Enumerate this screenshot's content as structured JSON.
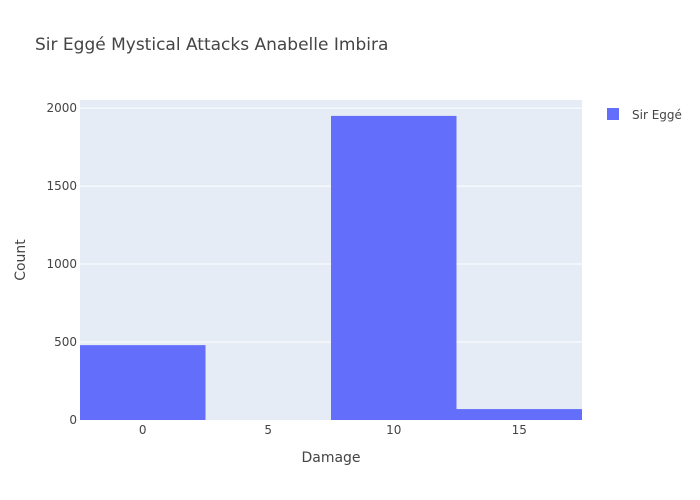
{
  "chart_data": {
    "type": "bar",
    "title": "Sir Eggé Mystical Attacks Anabelle Imbira",
    "xlabel": "Damage",
    "ylabel": "Count",
    "categories": [
      "0",
      "5",
      "10",
      "15"
    ],
    "x": [
      0,
      5,
      10,
      15
    ],
    "x_ticks": [
      "0",
      "5",
      "10",
      "15"
    ],
    "y_ticks": [
      "0",
      "500",
      "1000",
      "1500",
      "2000"
    ],
    "xlim": [
      -2.5,
      17.5
    ],
    "ylim": [
      0,
      2052
    ],
    "series": [
      {
        "name": "Sir Eggé",
        "values": [
          480,
          0,
          1950,
          70
        ]
      }
    ],
    "grid": true,
    "legend_position": "top-right",
    "colors": {
      "bar": "#636efa",
      "plot_bg": "#e5ecf6",
      "grid": "#ffffff",
      "text": "#444444"
    }
  }
}
